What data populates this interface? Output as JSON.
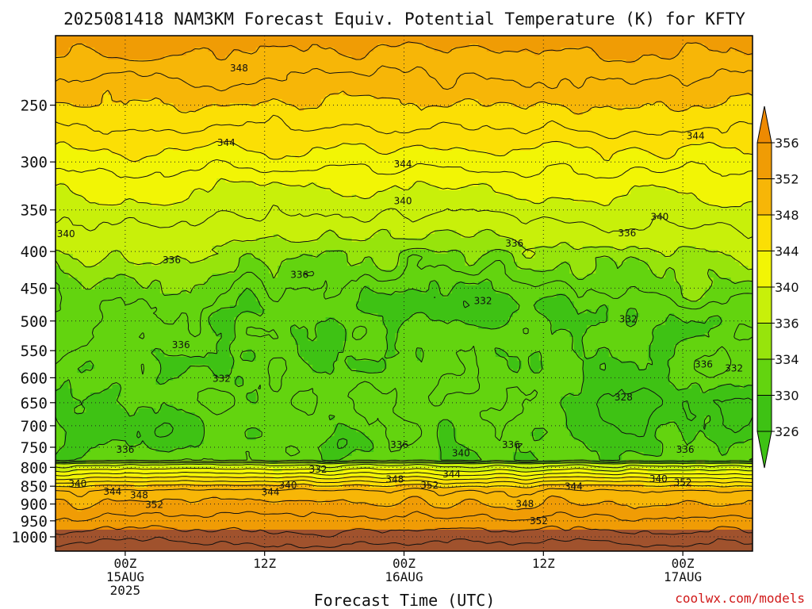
{
  "chart_data": {
    "type": "heatmap",
    "title": "2025081418 NAM3KM Forecast Equiv. Potential Temperature (K) for KFTY",
    "xlabel": "Forecast Time (UTC)",
    "ylabel": "",
    "y_scale": "log-pressure",
    "ylim": [
      1000,
      200
    ],
    "y_ticks": [
      250,
      300,
      350,
      400,
      450,
      500,
      550,
      600,
      650,
      700,
      750,
      800,
      850,
      900,
      950,
      1000
    ],
    "x_ticks": [
      {
        "t": 6,
        "lines": [
          "00Z",
          "15AUG",
          "2025"
        ]
      },
      {
        "t": 18,
        "lines": [
          "12Z"
        ]
      },
      {
        "t": 30,
        "lines": [
          "00Z",
          "16AUG"
        ]
      },
      {
        "t": 42,
        "lines": [
          "12Z"
        ]
      },
      {
        "t": 54,
        "lines": [
          "00Z",
          "17AUG"
        ]
      }
    ],
    "xlim": [
      0,
      60
    ],
    "colorbar": {
      "levels": [
        326,
        330,
        334,
        336,
        340,
        344,
        348,
        352,
        356
      ],
      "colors": [
        "#3ec214",
        "#63d40f",
        "#97e40c",
        "#c8f00a",
        "#f2f505",
        "#fbdf05",
        "#f7b607",
        "#f09c05",
        "#ee8a02"
      ],
      "ground_color": "#a0522d"
    },
    "contour_labels": [
      {
        "t": 15.8,
        "p": 222,
        "v": "348"
      },
      {
        "t": 14.7,
        "p": 282,
        "v": "344"
      },
      {
        "t": 29.9,
        "p": 302,
        "v": "344"
      },
      {
        "t": 55.1,
        "p": 276,
        "v": "344"
      },
      {
        "t": 0.9,
        "p": 378,
        "v": "340"
      },
      {
        "t": 29.9,
        "p": 340,
        "v": "340"
      },
      {
        "t": 52.0,
        "p": 358,
        "v": "340"
      },
      {
        "t": 10.0,
        "p": 411,
        "v": "336"
      },
      {
        "t": 21.0,
        "p": 431,
        "v": "336"
      },
      {
        "t": 39.5,
        "p": 390,
        "v": "336"
      },
      {
        "t": 49.2,
        "p": 377,
        "v": "336"
      },
      {
        "t": 10.8,
        "p": 540,
        "v": "336"
      },
      {
        "t": 36.8,
        "p": 469,
        "v": "332"
      },
      {
        "t": 49.3,
        "p": 497,
        "v": "332"
      },
      {
        "t": 14.3,
        "p": 602,
        "v": "332"
      },
      {
        "t": 55.8,
        "p": 575,
        "v": "336"
      },
      {
        "t": 58.4,
        "p": 582,
        "v": "332"
      },
      {
        "t": 48.9,
        "p": 639,
        "v": "328"
      },
      {
        "t": 6.0,
        "p": 756,
        "v": "336"
      },
      {
        "t": 29.6,
        "p": 744,
        "v": "336"
      },
      {
        "t": 34.9,
        "p": 764,
        "v": "340"
      },
      {
        "t": 39.2,
        "p": 744,
        "v": "336"
      },
      {
        "t": 54.2,
        "p": 756,
        "v": "336"
      },
      {
        "t": 22.6,
        "p": 805,
        "v": "332"
      },
      {
        "t": 1.9,
        "p": 843,
        "v": "340"
      },
      {
        "t": 4.9,
        "p": 865,
        "v": "344"
      },
      {
        "t": 7.2,
        "p": 875,
        "v": "348"
      },
      {
        "t": 8.5,
        "p": 902,
        "v": "352"
      },
      {
        "t": 18.5,
        "p": 866,
        "v": "344"
      },
      {
        "t": 20.0,
        "p": 848,
        "v": "340"
      },
      {
        "t": 29.2,
        "p": 831,
        "v": "348"
      },
      {
        "t": 32.2,
        "p": 848,
        "v": "352"
      },
      {
        "t": 34.1,
        "p": 818,
        "v": "344"
      },
      {
        "t": 44.6,
        "p": 851,
        "v": "344"
      },
      {
        "t": 40.4,
        "p": 900,
        "v": "348"
      },
      {
        "t": 41.6,
        "p": 951,
        "v": "352"
      },
      {
        "t": 51.9,
        "p": 830,
        "v": "340"
      },
      {
        "t": 54.0,
        "p": 840,
        "v": "352"
      }
    ]
  },
  "watermark": "coolwx.com/models"
}
